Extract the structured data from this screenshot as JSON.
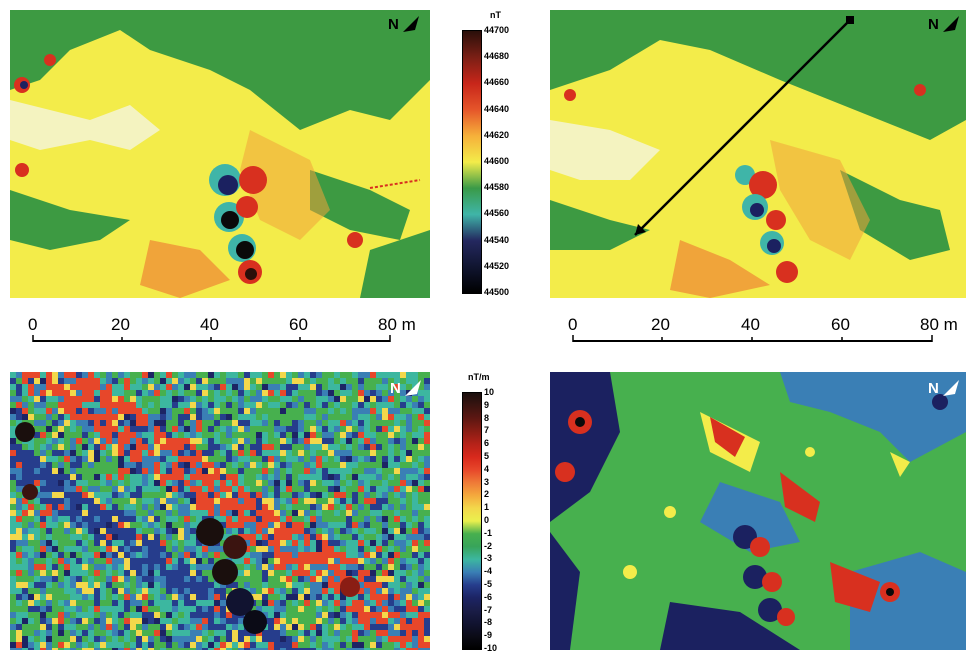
{
  "north_label": "N",
  "magnetic_colorbar": {
    "unit": "nT",
    "ticks": [
      "44700",
      "44680",
      "44660",
      "44640",
      "44620",
      "44600",
      "44580",
      "44560",
      "44540",
      "44520",
      "44500"
    ],
    "colors": [
      "#2a0f0a",
      "#7a1f15",
      "#c8261a",
      "#e5552a",
      "#f6b03a",
      "#f3ec4a",
      "#3a9a48",
      "#3fb5a8",
      "#24285f",
      "#101530",
      "#000000"
    ]
  },
  "gradient_colorbar": {
    "unit": "nT/m",
    "ticks": [
      "10",
      "9",
      "8",
      "7",
      "6",
      "5",
      "4",
      "3",
      "2",
      "1",
      "0",
      "-1",
      "-2",
      "-3",
      "-4",
      "-5",
      "-6",
      "-7",
      "-8",
      "-9",
      "-10"
    ],
    "colors": [
      "#1a0f0d",
      "#3b1410",
      "#5e1712",
      "#8a1d14",
      "#b62219",
      "#d8291c",
      "#e7472a",
      "#ef7a37",
      "#f4a93d",
      "#f3d84b",
      "#eaf04e",
      "#47b04e",
      "#38a45a",
      "#3cb7a0",
      "#3a7fb5",
      "#263d8c",
      "#1c2464",
      "#1a1d47",
      "#111330",
      "#0b0b16",
      "#000000"
    ]
  },
  "scale_bars": [
    {
      "labels": [
        "0",
        "20",
        "40",
        "60",
        "80 m"
      ]
    },
    {
      "labels": [
        "0",
        "20",
        "40",
        "60",
        "80 m"
      ]
    }
  ],
  "panel_colors": {
    "green": "#3d9a42",
    "yellow": "#f4ec4c",
    "pale": "#f4f3c0",
    "orange": "#f0a43a",
    "red": "#d8301f",
    "navy": "#1b2160",
    "black": "#0a0a0a",
    "teal": "#4bb8a8",
    "blue": "#2a3f93"
  }
}
